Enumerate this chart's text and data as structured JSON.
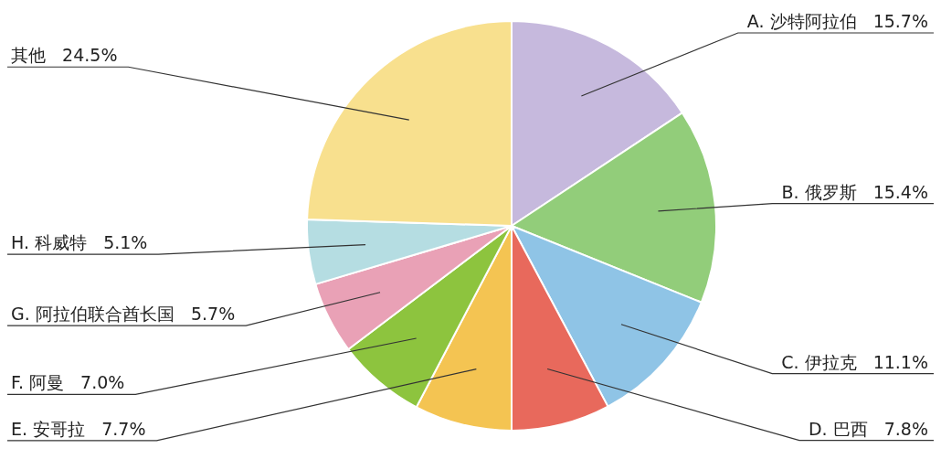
{
  "chart_data": {
    "type": "pie",
    "categories": [
      "A. 沙特阿拉伯",
      "B. 俄罗斯",
      "C. 伊拉克",
      "D. 巴西",
      "E. 安哥拉",
      "F. 阿曼",
      "G. 阿拉伯联合酋长国",
      "H. 科威特",
      "其他"
    ],
    "values": [
      15.7,
      15.4,
      11.1,
      7.8,
      7.7,
      7.0,
      5.7,
      5.1,
      24.5
    ],
    "value_labels": [
      "15.7%",
      "15.4%",
      "11.1%",
      "7.8%",
      "7.7%",
      "7.0%",
      "5.7%",
      "5.1%",
      "24.5%"
    ],
    "colors": [
      "#c6b9dd",
      "#92cd7a",
      "#8fc4e6",
      "#e8695c",
      "#f4c452",
      "#8dc43e",
      "#e9a1b6",
      "#b5dde2",
      "#f8e08e"
    ],
    "legend": false
  }
}
